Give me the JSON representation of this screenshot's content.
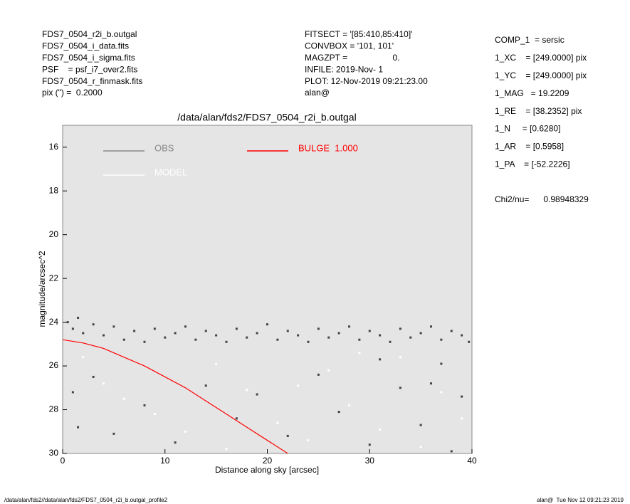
{
  "header": {
    "left": [
      "FDS7_0504_r2i_b.outgal",
      "FDS7_0504_i_data.fits",
      "FDS7_0504_i_sigma.fits",
      "PSF    = psf_i7_over2.fits",
      "FDS7_0504_r_finmask.fits",
      "pix (\") =  0.2000"
    ],
    "middle": [
      "FITSECT = '[85:410,85:410]'",
      "CONVBOX = '101, 101'",
      "MAGZPT =                   0.",
      "INFILE: 2019-Nov- 1",
      "PLOT: 12-Nov-2019 09:21:23.00",
      "alan@"
    ],
    "right": [
      "COMP_1  = sersic",
      "1_XC    = [249.0000] pix",
      "1_YC    = [249.0000] pix",
      "1_MAG   = 19.2209",
      "1_RE    = [38.2352] pix",
      "1_N     = [0.6280]",
      "1_AR    = [0.5958]",
      "1_PA    = [-52.2226]"
    ],
    "chi2": "Chi2/nu=      0.98948329"
  },
  "footer": {
    "left": "/data/alan/fds2//data/alan/fds2/FDS7_0504_r2i_b.outgal_profile2",
    "right": "alan@  Tue Nov 12 09:21:23 2019"
  },
  "chart_data": {
    "type": "scatter",
    "title": "/data/alan/fds2/FDS7_0504_r2i_b.outgal",
    "xlabel": "Distance along sky [arcsec]",
    "ylabel": "magnitude/arcsec^2",
    "xlim": [
      0,
      40
    ],
    "ylim": [
      30,
      15
    ],
    "xticks": [
      0,
      10,
      20,
      30,
      40
    ],
    "yticks": [
      16,
      18,
      20,
      22,
      24,
      26,
      28,
      30
    ],
    "background": "#e5e5e5",
    "series": [
      {
        "name": "OBS",
        "color": "#444444",
        "legend_color": "#888888",
        "x": [
          0.5,
          1,
          1.5,
          2,
          3,
          4,
          5,
          6,
          7,
          8,
          9,
          10,
          11,
          12,
          13,
          14,
          15,
          16,
          17,
          18,
          19,
          20,
          21,
          22,
          23,
          24,
          25,
          26,
          27,
          28,
          29,
          30,
          31,
          32,
          33,
          34,
          35,
          36,
          37,
          38,
          39,
          39.7,
          1,
          1.5,
          3,
          5,
          8,
          11,
          14,
          17,
          19,
          22,
          25,
          27,
          30,
          33,
          35,
          37,
          38,
          39,
          36,
          31
        ],
        "values": [
          24.0,
          24.3,
          23.8,
          24.5,
          24.1,
          24.6,
          24.2,
          24.8,
          24.4,
          24.9,
          24.3,
          24.7,
          24.5,
          24.2,
          24.8,
          24.4,
          24.6,
          24.9,
          24.3,
          24.7,
          24.5,
          24.1,
          24.8,
          24.4,
          24.6,
          24.9,
          24.3,
          24.7,
          24.5,
          24.2,
          24.8,
          24.4,
          24.6,
          24.9,
          24.3,
          24.7,
          24.5,
          24.2,
          24.8,
          24.4,
          24.6,
          24.9,
          27.2,
          28.8,
          26.5,
          29.1,
          27.8,
          29.5,
          26.9,
          28.4,
          27.3,
          29.2,
          26.4,
          28.1,
          29.6,
          27.0,
          28.7,
          25.9,
          29.9,
          27.4,
          26.8,
          25.7
        ]
      },
      {
        "name": "MODEL",
        "color": "#ffffff",
        "x": [
          2,
          4,
          6,
          9,
          12,
          15,
          18,
          21,
          24,
          26,
          28,
          31,
          33,
          35,
          37,
          39,
          16,
          23,
          29,
          20
        ],
        "values": [
          25.6,
          26.8,
          27.5,
          28.2,
          29.0,
          25.9,
          27.1,
          28.6,
          29.4,
          26.2,
          27.8,
          28.9,
          25.6,
          29.7,
          27.2,
          28.4,
          29.8,
          26.9,
          25.4,
          29.9
        ]
      },
      {
        "name": "BULGE  1.000",
        "color": "#ff0000",
        "kind": "line",
        "x": [
          0,
          2,
          4,
          6,
          8,
          10,
          12,
          14,
          16,
          18,
          20,
          22
        ],
        "values": [
          24.8,
          24.95,
          25.2,
          25.6,
          26.0,
          26.5,
          27.0,
          27.6,
          28.2,
          28.8,
          29.4,
          30.0
        ]
      }
    ]
  }
}
